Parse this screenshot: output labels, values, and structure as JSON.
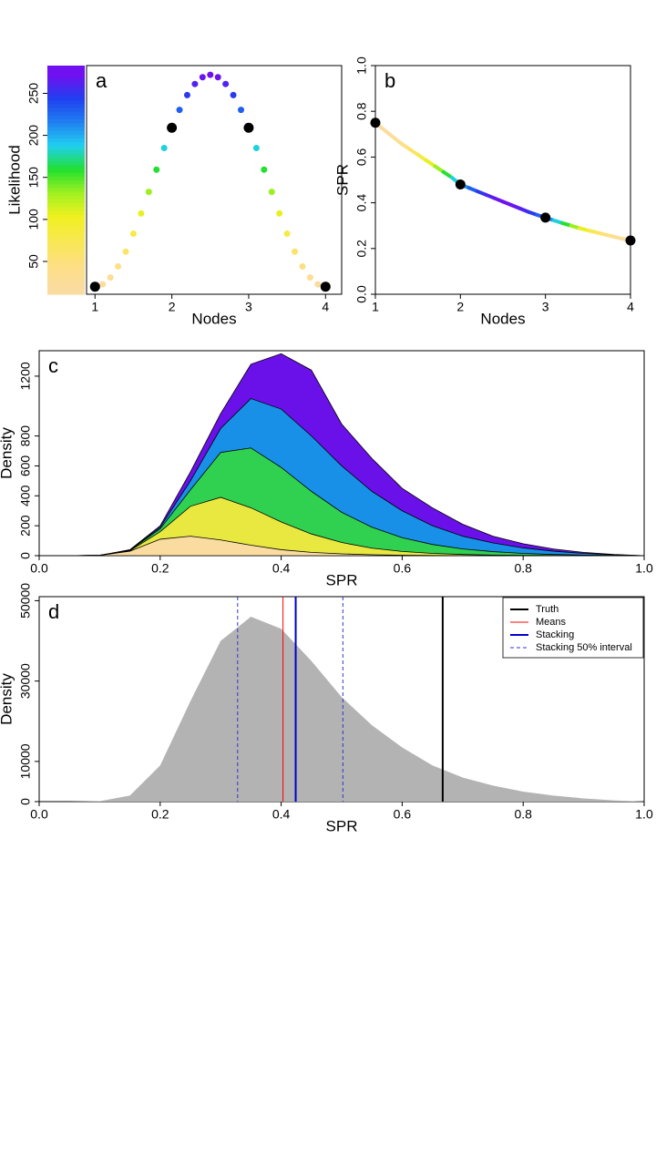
{
  "chart_data": [
    {
      "type": "scatter",
      "label": "a",
      "xlabel": "Nodes",
      "ylabel": "Likelihood",
      "xlim": [
        0.89,
        4.21
      ],
      "ylim": [
        11,
        283
      ],
      "xticks": [
        1,
        2,
        3,
        4
      ],
      "yticks": [
        50,
        100,
        150,
        200,
        250
      ],
      "colormap": [
        "#fbdca0",
        "#fde080",
        "#f8e850",
        "#f0f020",
        "#a0f020",
        "#20e030",
        "#20d0f0",
        "#2080f0",
        "#2040f0",
        "#7010f0"
      ],
      "curve": {
        "x": [
          1,
          1.1,
          1.2,
          1.3,
          1.4,
          1.5,
          1.6,
          1.7,
          1.8,
          1.9,
          2,
          2.1,
          2.2,
          2.3,
          2.4,
          2.5,
          2.6,
          2.7,
          2.8,
          2.9,
          3,
          3.1,
          3.2,
          3.3,
          3.4,
          3.5,
          3.6,
          3.7,
          3.8,
          3.9,
          4
        ],
        "values": [
          20,
          22.8,
          30.9,
          44.1,
          61.7,
          83,
          107.1,
          132.8,
          159.2,
          184.9,
          209,
          230.3,
          247.9,
          261.1,
          269.2,
          272,
          269.2,
          261.1,
          247.9,
          230.3,
          209,
          184.9,
          159.2,
          132.8,
          107.1,
          83,
          61.7,
          44.1,
          30.9,
          22.8,
          20
        ]
      },
      "points": {
        "x": [
          1,
          2,
          3,
          4
        ],
        "values": [
          20,
          209,
          209,
          20
        ]
      }
    },
    {
      "type": "line",
      "label": "b",
      "xlabel": "Nodes",
      "ylabel": "SPR",
      "xlim": [
        1,
        4
      ],
      "ylim": [
        0,
        1
      ],
      "xticks": [
        1,
        2,
        3,
        4
      ],
      "yticks": [
        {
          "value": 0,
          "label": "0.0"
        },
        0.2,
        0.4,
        0.6,
        0.8,
        {
          "value": 1,
          "label": "1.0"
        }
      ],
      "curve": {
        "x": [
          1,
          1.1,
          1.2,
          1.3,
          1.4,
          1.5,
          1.6,
          1.7,
          1.8,
          1.9,
          2,
          2.1,
          2.2,
          2.3,
          2.4,
          2.5,
          2.6,
          2.7,
          2.8,
          2.9,
          3,
          3.1,
          3.2,
          3.3,
          3.4,
          3.5,
          3.6,
          3.7,
          3.8,
          3.9,
          4
        ],
        "values": [
          0.75,
          0.72,
          0.69,
          0.66,
          0.635,
          0.61,
          0.585,
          0.56,
          0.535,
          0.51,
          0.48,
          0.465,
          0.45,
          0.435,
          0.42,
          0.405,
          0.39,
          0.375,
          0.36,
          0.347,
          0.335,
          0.323,
          0.311,
          0.3,
          0.289,
          0.279,
          0.27,
          0.261,
          0.252,
          0.243,
          0.235
        ]
      },
      "points": {
        "x": [
          1,
          2,
          3,
          4
        ],
        "values": [
          0.75,
          0.48,
          0.335,
          0.235
        ]
      }
    },
    {
      "type": "area",
      "label": "c",
      "xlabel": "SPR",
      "ylabel": "Density",
      "xlim": [
        0,
        1
      ],
      "ylim": [
        0,
        1370
      ],
      "xticks": [
        {
          "value": 0,
          "label": "0.0"
        },
        0.2,
        0.4,
        0.6,
        0.8,
        {
          "value": 1,
          "label": "1.0"
        }
      ],
      "yticks": [
        0,
        200,
        400,
        600,
        800,
        1200
      ],
      "x": [
        0,
        0.05,
        0.1,
        0.15,
        0.2,
        0.25,
        0.3,
        0.35,
        0.4,
        0.45,
        0.5,
        0.55,
        0.6,
        0.65,
        0.7,
        0.75,
        0.8,
        0.85,
        0.9,
        0.95,
        1
      ],
      "series": [
        {
          "color": "#6a10e8",
          "values": [
            0,
            0,
            2,
            40,
            200,
            560,
            950,
            1280,
            1350,
            1240,
            880,
            650,
            450,
            320,
            210,
            130,
            80,
            45,
            22,
            8,
            0
          ]
        },
        {
          "color": "#1890e8",
          "values": [
            0,
            0,
            2,
            38,
            190,
            500,
            850,
            1050,
            980,
            800,
            600,
            430,
            300,
            200,
            130,
            85,
            52,
            30,
            15,
            6,
            0
          ]
        },
        {
          "color": "#30d050",
          "values": [
            0,
            0,
            3,
            36,
            180,
            440,
            690,
            720,
            590,
            430,
            290,
            190,
            120,
            75,
            45,
            27,
            15,
            8,
            4,
            2,
            0
          ]
        },
        {
          "color": "#e8e840",
          "values": [
            0,
            0,
            3,
            33,
            160,
            330,
            390,
            320,
            225,
            145,
            88,
            50,
            28,
            15,
            8,
            4,
            2,
            1,
            0,
            0,
            0
          ]
        },
        {
          "color": "#fbdca0",
          "values": [
            0,
            0,
            2,
            30,
            110,
            130,
            105,
            70,
            40,
            22,
            12,
            6,
            3,
            1,
            0,
            0,
            0,
            0,
            0,
            0,
            0
          ]
        }
      ]
    },
    {
      "type": "density",
      "label": "d",
      "xlabel": "SPR",
      "ylabel": "Density",
      "xlim": [
        0,
        1
      ],
      "ylim": [
        0,
        51000
      ],
      "xticks": [
        {
          "value": 0,
          "label": "0.0"
        },
        0.2,
        0.4,
        0.6,
        0.8,
        {
          "value": 1,
          "label": "1.0"
        }
      ],
      "yticks": [
        0,
        10000,
        30000,
        50000
      ],
      "x": [
        0,
        0.05,
        0.1,
        0.15,
        0.2,
        0.25,
        0.3,
        0.35,
        0.4,
        0.45,
        0.5,
        0.55,
        0.6,
        0.65,
        0.7,
        0.75,
        0.8,
        0.85,
        0.9,
        0.95,
        1
      ],
      "values": [
        0,
        0,
        100,
        1500,
        9000,
        25000,
        40000,
        46000,
        43000,
        35000,
        26000,
        19000,
        13500,
        9000,
        6000,
        4000,
        2500,
        1500,
        800,
        300,
        0
      ],
      "color": "#b3b3b3",
      "lines": [
        {
          "name": "Truth",
          "color": "#000000",
          "width": 2,
          "values": [
            0.667
          ]
        },
        {
          "name": "Means",
          "color": "#ff0000",
          "width": 1,
          "values": [
            0.403
          ]
        },
        {
          "name": "Stacking",
          "color": "#0000cc",
          "width": 2,
          "values": [
            0.424
          ]
        },
        {
          "name": "Stacking 50% interval",
          "color": "#3333cc",
          "width": 1,
          "dashed": true,
          "values": [
            0.328,
            0.502
          ]
        }
      ]
    }
  ]
}
